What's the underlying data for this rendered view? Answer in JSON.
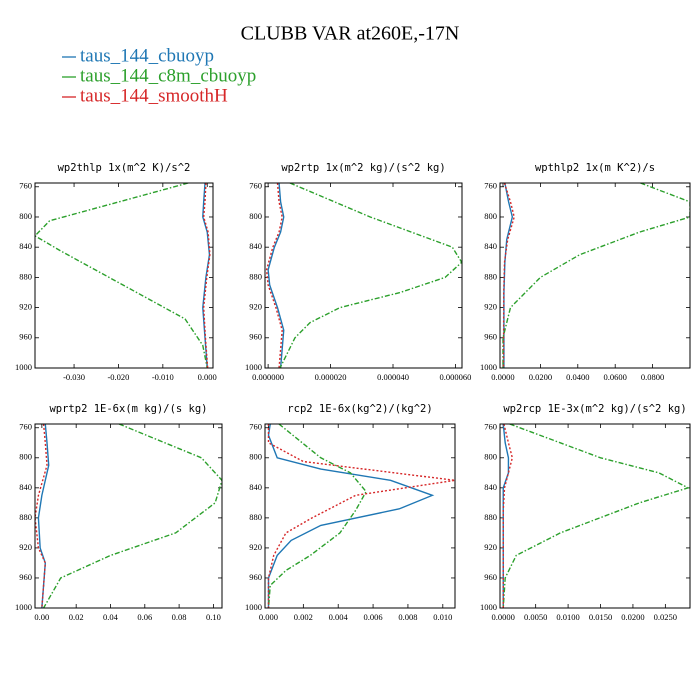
{
  "title": "CLUBB VAR at260E,-17N",
  "chart_data": [
    {
      "type": "line",
      "title": "wp2thlp  1x(m^2 K)/s^2",
      "xlim": [
        -0.0388,
        0.0013
      ],
      "ylim": [
        1000,
        755
      ],
      "xticks": [
        {
          "value": -0.03,
          "label": "-0.030"
        },
        {
          "value": -0.02,
          "label": "-0.020"
        },
        {
          "value": -0.01,
          "label": "-0.010"
        },
        {
          "value": 0,
          "label": "0.000"
        }
      ],
      "yticks": [
        760,
        800,
        840,
        880,
        920,
        960,
        1000
      ],
      "series": [
        {
          "name": "taus_144_cbuoyp",
          "color": "#1f77b4",
          "dash": "solid",
          "levels": [
            755,
            780,
            800,
            820,
            850,
            880,
            920,
            960,
            1000
          ],
          "values": [
            -0.0005,
            -0.0008,
            -0.001,
            0,
            0.0005,
            -0.0003,
            -0.001,
            -0.0005,
            0
          ]
        },
        {
          "name": "taus_144_c8m_cbuoyp",
          "color": "#2ca02c",
          "dash": "dashed",
          "levels": [
            755,
            805,
            825,
            845,
            935,
            970,
            1000
          ],
          "values": [
            -0.0043,
            -0.0355,
            -0.0388,
            -0.033,
            -0.005,
            -0.001,
            0
          ]
        },
        {
          "name": "taus_144_smoothH",
          "color": "#d62728",
          "dash": "dotted",
          "levels": [
            755,
            780,
            800,
            820,
            850,
            880,
            920,
            960,
            1000
          ],
          "values": [
            -0.0003,
            -0.0005,
            -0.0008,
            0.0002,
            0.0006,
            -0.0001,
            -0.0008,
            -0.0004,
            0.0001
          ]
        }
      ]
    },
    {
      "type": "line",
      "title": "wp2rtp  1x(m^2 kg)/(s^2 kg)",
      "xlim": [
        -1e-06,
        6.21e-05
      ],
      "ylim": [
        1000,
        755
      ],
      "xticks": [
        {
          "value": 0,
          "label": "0.000000"
        },
        {
          "value": 2e-05,
          "label": "0.000020"
        },
        {
          "value": 4e-05,
          "label": "0.000040"
        },
        {
          "value": 6e-05,
          "label": "0.000060"
        }
      ],
      "yticks": [
        760,
        800,
        840,
        880,
        920,
        960,
        1000
      ],
      "series": [
        {
          "name": "taus_144_cbuoyp",
          "color": "#1f77b4",
          "dash": "solid",
          "levels": [
            755,
            780,
            800,
            820,
            840,
            870,
            890,
            920,
            950,
            1000
          ],
          "values": [
            3.5e-06,
            4e-06,
            5e-06,
            4e-06,
            2e-06,
            0,
            5e-07,
            3e-06,
            5e-06,
            4e-06
          ]
        },
        {
          "name": "taus_144_c8m_cbuoyp",
          "color": "#2ca02c",
          "dash": "dashed",
          "levels": [
            755,
            800,
            840,
            860,
            880,
            900,
            920,
            940,
            960,
            1000
          ],
          "values": [
            7e-06,
            3.27e-05,
            5.9e-05,
            6.2e-05,
            5.67e-05,
            4.23e-05,
            2.3e-05,
            1.34e-05,
            8.6e-06,
            3.8e-06
          ]
        },
        {
          "name": "taus_144_smoothH",
          "color": "#d62728",
          "dash": "dotted",
          "levels": [
            755,
            780,
            800,
            820,
            840,
            870,
            890,
            920,
            950,
            1000
          ],
          "values": [
            3e-06,
            3.5e-06,
            4.5e-06,
            3.5e-06,
            1.5e-06,
            -5e-07,
            0,
            2.5e-06,
            4.5e-06,
            3.5e-06
          ]
        }
      ]
    },
    {
      "type": "line",
      "title": "wpthlp2  1x(m K^2)/s",
      "xlim": [
        -0.0016,
        0.1
      ],
      "ylim": [
        1000,
        755
      ],
      "xticks": [
        {
          "value": 0,
          "label": "0.0000"
        },
        {
          "value": 0.02,
          "label": "0.0200"
        },
        {
          "value": 0.04,
          "label": "0.0400"
        },
        {
          "value": 0.06,
          "label": "0.0600"
        },
        {
          "value": 0.08,
          "label": "0.0800"
        }
      ],
      "yticks": [
        760,
        800,
        840,
        880,
        920,
        960,
        1000
      ],
      "series": [
        {
          "name": "taus_144_cbuoyp",
          "color": "#1f77b4",
          "dash": "solid",
          "levels": [
            755,
            780,
            800,
            830,
            860,
            900,
            1000
          ],
          "values": [
            0.001,
            0.003,
            0.005,
            0.002,
            0.001,
            0.0005,
            0.0005
          ]
        },
        {
          "name": "taus_144_c8m_cbuoyp",
          "color": "#2ca02c",
          "dash": "dashed",
          "levels": [
            755,
            780,
            800,
            820,
            850,
            880,
            920,
            960,
            1000
          ],
          "values": [
            0.0735,
            0.1,
            0.1,
            0.073,
            0.041,
            0.02,
            0.004,
            0,
            0
          ]
        },
        {
          "name": "taus_144_smoothH",
          "color": "#d62728",
          "dash": "dotted",
          "levels": [
            755,
            780,
            800,
            830,
            860,
            900,
            1000
          ],
          "values": [
            0.0008,
            0.004,
            0.006,
            0.0025,
            0.0008,
            0.0004,
            0.0003
          ]
        }
      ]
    },
    {
      "type": "line",
      "title": "wprtp2  1E-6x(m kg)/(s kg)",
      "xlim": [
        -0.004,
        0.105
      ],
      "ylim": [
        1000,
        755
      ],
      "xticks": [
        {
          "value": 0,
          "label": "0.00"
        },
        {
          "value": 0.02,
          "label": "0.02"
        },
        {
          "value": 0.04,
          "label": "0.04"
        },
        {
          "value": 0.06,
          "label": "0.06"
        },
        {
          "value": 0.08,
          "label": "0.08"
        },
        {
          "value": 0.1,
          "label": "0.10"
        }
      ],
      "yticks": [
        760,
        800,
        840,
        880,
        920,
        960,
        1000
      ],
      "series": [
        {
          "name": "taus_144_cbuoyp",
          "color": "#1f77b4",
          "dash": "solid",
          "levels": [
            755,
            780,
            810,
            850,
            880,
            920,
            940,
            1000
          ],
          "values": [
            0.002,
            0.003,
            0.004,
            0,
            -0.002,
            -0.001,
            0.002,
            0
          ]
        },
        {
          "name": "taus_144_c8m_cbuoyp",
          "color": "#2ca02c",
          "dash": "dashed",
          "levels": [
            755,
            800,
            830,
            860,
            900,
            930,
            960,
            1000
          ],
          "values": [
            0.045,
            0.093,
            0.105,
            0.101,
            0.078,
            0.04,
            0.011,
            0.001
          ]
        },
        {
          "name": "taus_144_smoothH",
          "color": "#d62728",
          "dash": "dotted",
          "levels": [
            755,
            780,
            810,
            850,
            880,
            920,
            940,
            1000
          ],
          "values": [
            0.001,
            0.002,
            0.003,
            -0.002,
            -0.004,
            -0.002,
            0.002,
            0
          ]
        }
      ]
    },
    {
      "type": "line",
      "title": "rcp2  1E-6x(kg^2)/(kg^2)",
      "xlim": [
        -0.0002,
        0.0107
      ],
      "ylim": [
        1000,
        755
      ],
      "xticks": [
        {
          "value": 0,
          "label": "0.000"
        },
        {
          "value": 0.002,
          "label": "0.002"
        },
        {
          "value": 0.004,
          "label": "0.004"
        },
        {
          "value": 0.006,
          "label": "0.006"
        },
        {
          "value": 0.008,
          "label": "0.008"
        },
        {
          "value": 0.01,
          "label": "0.010"
        }
      ],
      "yticks": [
        760,
        800,
        840,
        880,
        920,
        960,
        1000
      ],
      "series": [
        {
          "name": "taus_144_cbuoyp",
          "color": "#1f77b4",
          "dash": "solid",
          "levels": [
            755,
            770,
            800,
            815,
            830,
            850,
            868,
            890,
            910,
            930,
            960,
            1000
          ],
          "values": [
            0.0001,
            0,
            0.0005,
            0.003,
            0.007,
            0.0094,
            0.0075,
            0.003,
            0.0013,
            0.0005,
            0,
            0
          ]
        },
        {
          "name": "taus_144_c8m_cbuoyp",
          "color": "#2ca02c",
          "dash": "dashed",
          "levels": [
            755,
            800,
            820,
            845,
            870,
            900,
            930,
            950,
            970,
            1000
          ],
          "values": [
            0.0006,
            0.003,
            0.0047,
            0.0056,
            0.005,
            0.0041,
            0.0024,
            0.001,
            0.0001,
            0
          ]
        },
        {
          "name": "taus_144_smoothH",
          "color": "#d62728",
          "dash": "dotted",
          "levels": [
            755,
            780,
            805,
            830,
            850,
            880,
            900,
            930,
            960,
            1000
          ],
          "values": [
            0,
            0,
            0.002,
            0.0107,
            0.005,
            0.0025,
            0.001,
            0.0003,
            0,
            0
          ]
        }
      ]
    },
    {
      "type": "line",
      "title": "wp2rcp  1E-3x(m^2 kg)/(s^2 kg)",
      "xlim": [
        -0.0005,
        0.0288
      ],
      "ylim": [
        1000,
        755
      ],
      "xticks": [
        {
          "value": 0,
          "label": "0.0000"
        },
        {
          "value": 0.005,
          "label": "0.0050"
        },
        {
          "value": 0.01,
          "label": "0.0100"
        },
        {
          "value": 0.015,
          "label": "0.0150"
        },
        {
          "value": 0.02,
          "label": "0.0200"
        },
        {
          "value": 0.025,
          "label": "0.0250"
        }
      ],
      "yticks": [
        760,
        800,
        840,
        880,
        920,
        960,
        1000
      ],
      "series": [
        {
          "name": "taus_144_cbuoyp",
          "color": "#1f77b4",
          "dash": "solid",
          "levels": [
            755,
            780,
            800,
            820,
            840,
            870,
            1000
          ],
          "values": [
            0,
            0.0003,
            0.0008,
            0.0008,
            0,
            0,
            0
          ]
        },
        {
          "name": "taus_144_c8m_cbuoyp",
          "color": "#2ca02c",
          "dash": "dashed",
          "levels": [
            755,
            800,
            820,
            840,
            860,
            900,
            930,
            960,
            1000
          ],
          "values": [
            0.001,
            0.015,
            0.024,
            0.0285,
            0.021,
            0.0088,
            0.002,
            0.0003,
            0
          ]
        },
        {
          "name": "taus_144_smoothH",
          "color": "#d62728",
          "dash": "dotted",
          "levels": [
            755,
            780,
            800,
            820,
            840,
            870,
            1000
          ],
          "values": [
            0.0001,
            0.0008,
            0.0014,
            0.0008,
            0.0002,
            0,
            0
          ]
        }
      ]
    }
  ]
}
